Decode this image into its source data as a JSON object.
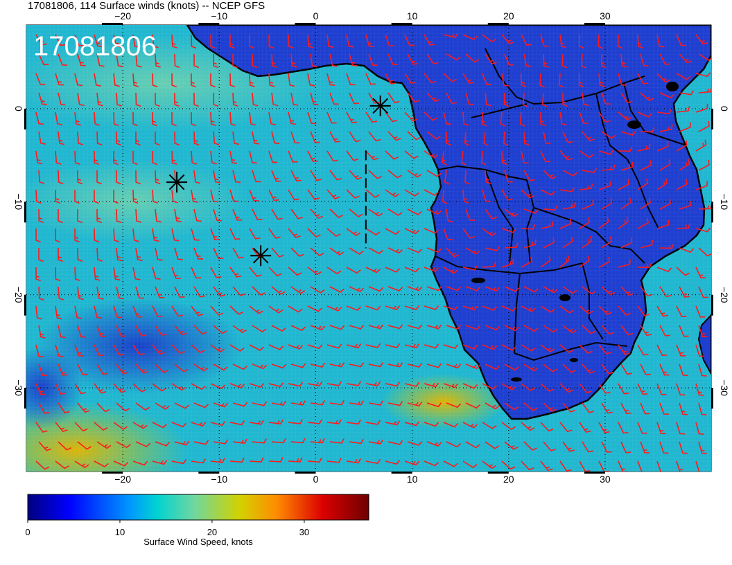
{
  "header": {
    "title": "17081806, 114 Surface winds (knots) -- NCEP GFS",
    "stamp": "17081806"
  },
  "map": {
    "lon_range": [
      -30,
      41
    ],
    "lat_range": [
      -39,
      9
    ],
    "lon_ticks": [
      -20,
      -10,
      0,
      10,
      20,
      30
    ],
    "lat_ticks": [
      0,
      -10,
      -20,
      -30
    ],
    "lon_tick_labels": [
      "−20",
      "−10",
      "0",
      "10",
      "20",
      "30"
    ],
    "lat_tick_labels": [
      "0",
      "−10",
      "−20",
      "−30"
    ],
    "gridlines": true,
    "ocean_color": "#21b7d0",
    "land_color": "#1e3fd0",
    "barb_color": "#ff1a1a",
    "border_color": "#000000"
  },
  "colorbar": {
    "label": "Surface Wind Speed, knots",
    "range": [
      0,
      37
    ],
    "ticks": [
      0,
      10,
      20,
      30
    ],
    "tick_labels": [
      "0",
      "10",
      "20",
      "30"
    ],
    "stops": [
      {
        "value": 0,
        "color": "#00007f"
      },
      {
        "value": 4.5,
        "color": "#0000ff"
      },
      {
        "value": 11,
        "color": "#0096ff"
      },
      {
        "value": 14,
        "color": "#00d2d2"
      },
      {
        "value": 18,
        "color": "#6ed7a0"
      },
      {
        "value": 23,
        "color": "#d2d200"
      },
      {
        "value": 27,
        "color": "#ff8c00"
      },
      {
        "value": 32,
        "color": "#dc0000"
      },
      {
        "value": 37,
        "color": "#6e0000"
      }
    ]
  },
  "markers": [
    {
      "name": "asterisk",
      "lon": 6.7,
      "lat": 0.3
    },
    {
      "name": "asterisk",
      "lon": -14.4,
      "lat": -7.9
    },
    {
      "name": "asterisk",
      "lon": -5.7,
      "lat": -15.8
    }
  ],
  "dashed_line": {
    "lon": 5.2,
    "lat_from": -4.5,
    "lat_to": -15.0
  }
}
